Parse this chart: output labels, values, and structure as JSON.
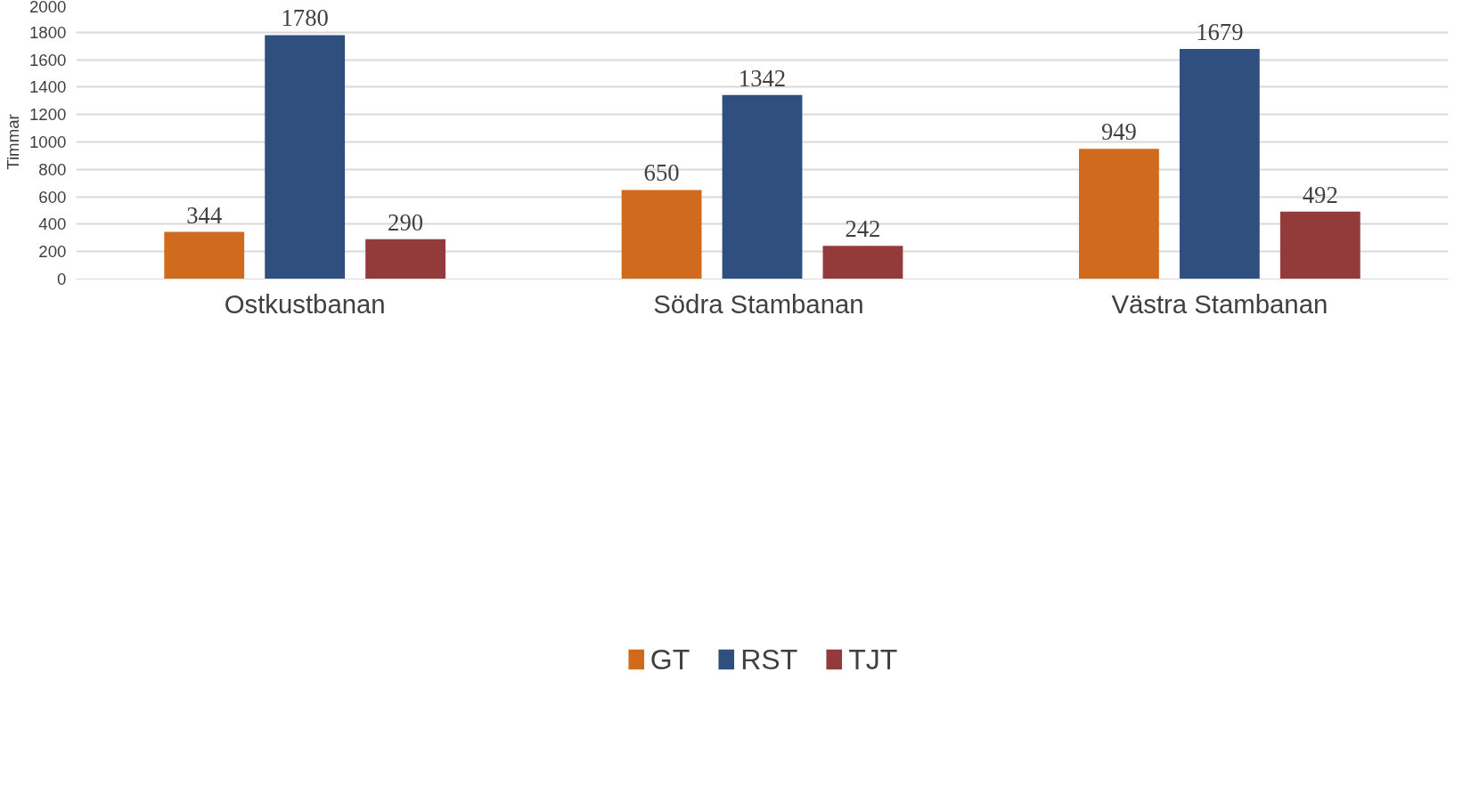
{
  "chart_data": {
    "type": "bar",
    "ylabel": "Timmar",
    "categories": [
      "Ostkustbanan",
      "Södra  Stambanan",
      "Västra Stambanan"
    ],
    "series": [
      {
        "name": "GT",
        "color": "#d06a1c",
        "values": [
          344,
          650,
          949
        ]
      },
      {
        "name": "RST",
        "color": "#2f507e",
        "values": [
          1780,
          1342,
          1679
        ]
      },
      {
        "name": "TJT",
        "color": "#933a3a",
        "values": [
          290,
          242,
          492
        ]
      }
    ],
    "ylim": [
      0,
      2000
    ],
    "yticks": [
      0,
      200,
      400,
      600,
      800,
      1000,
      1200,
      1400,
      1600,
      1800,
      2000
    ],
    "grid": "y",
    "legend": "bottom",
    "data_labels": true
  }
}
